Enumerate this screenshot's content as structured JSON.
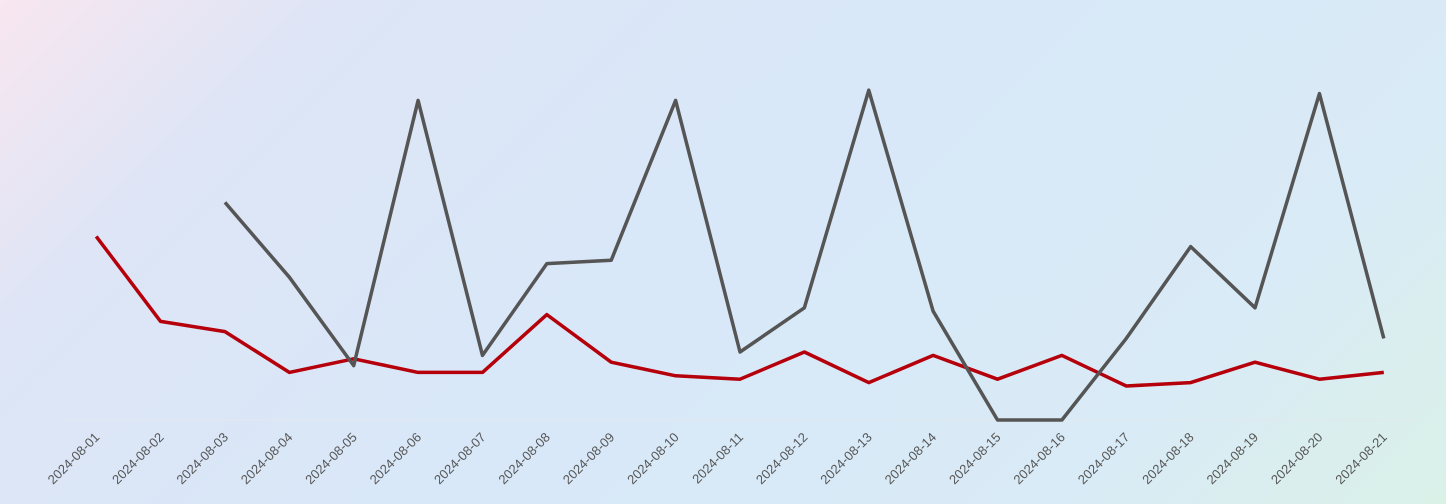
{
  "chart_data": {
    "type": "line",
    "x": [
      "2024-08-01",
      "2024-08-02",
      "2024-08-03",
      "2024-08-04",
      "2024-08-05",
      "2024-08-06",
      "2024-08-07",
      "2024-08-08",
      "2024-08-09",
      "2024-08-10",
      "2024-08-11",
      "2024-08-12",
      "2024-08-13",
      "2024-08-14",
      "2024-08-15",
      "2024-08-16",
      "2024-08-17",
      "2024-08-18",
      "2024-08-19",
      "2024-08-20",
      "2024-08-21"
    ],
    "series": [
      {
        "color": "#b5000b",
        "values": [
          54,
          29,
          26,
          14,
          18,
          14,
          14,
          31,
          17,
          13,
          12,
          20,
          11,
          19,
          12,
          19,
          10,
          11,
          17,
          12,
          14
        ]
      },
      {
        "color": "#555555",
        "values": [
          null,
          null,
          64,
          42,
          16,
          94,
          19,
          46,
          47,
          94,
          20,
          33,
          97,
          32,
          0,
          0,
          24,
          51,
          33,
          96,
          24
        ]
      }
    ],
    "ylim": [
      0,
      100
    ]
  }
}
